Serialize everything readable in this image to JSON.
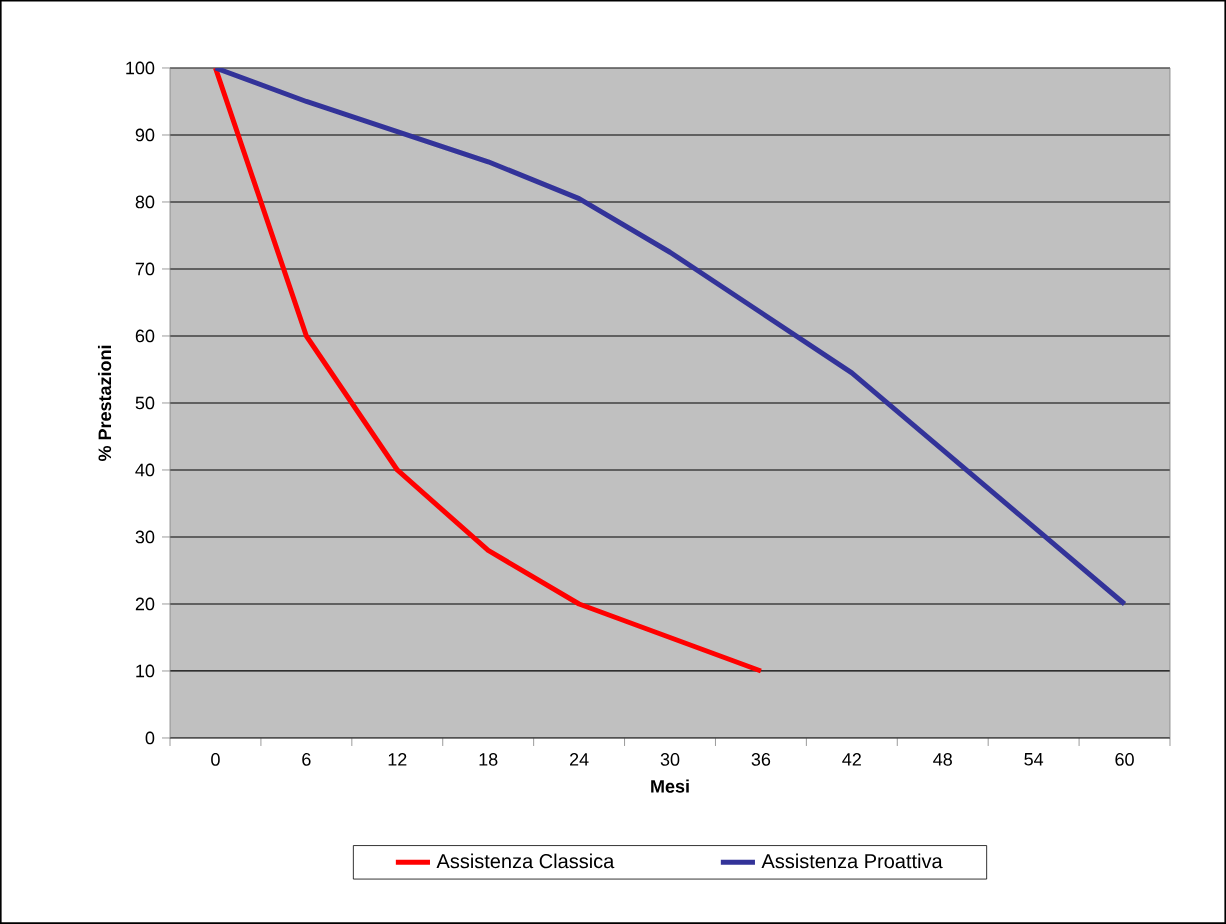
{
  "chart_data": {
    "type": "line",
    "xlabel": "Mesi",
    "ylabel": "% Prestazioni",
    "categories": [
      "0",
      "6",
      "12",
      "18",
      "24",
      "30",
      "36",
      "42",
      "48",
      "54",
      "60"
    ],
    "series": [
      {
        "name": "Assistenza Classica",
        "color": "#ff0000",
        "values": [
          100,
          60,
          40,
          28,
          20,
          15,
          10,
          null,
          null,
          null,
          null
        ]
      },
      {
        "name": "Assistenza Proattiva",
        "color": "#333399",
        "values": [
          100,
          95,
          90.5,
          86,
          80.5,
          72.5,
          63.5,
          54.5,
          43,
          31.5,
          20
        ]
      }
    ],
    "ylim": [
      0,
      100
    ],
    "yticks": [
      0,
      10,
      20,
      30,
      40,
      50,
      60,
      70,
      80,
      90,
      100
    ],
    "grid": "y",
    "legend": "bottom",
    "marker": "none",
    "line_style": "solid"
  }
}
